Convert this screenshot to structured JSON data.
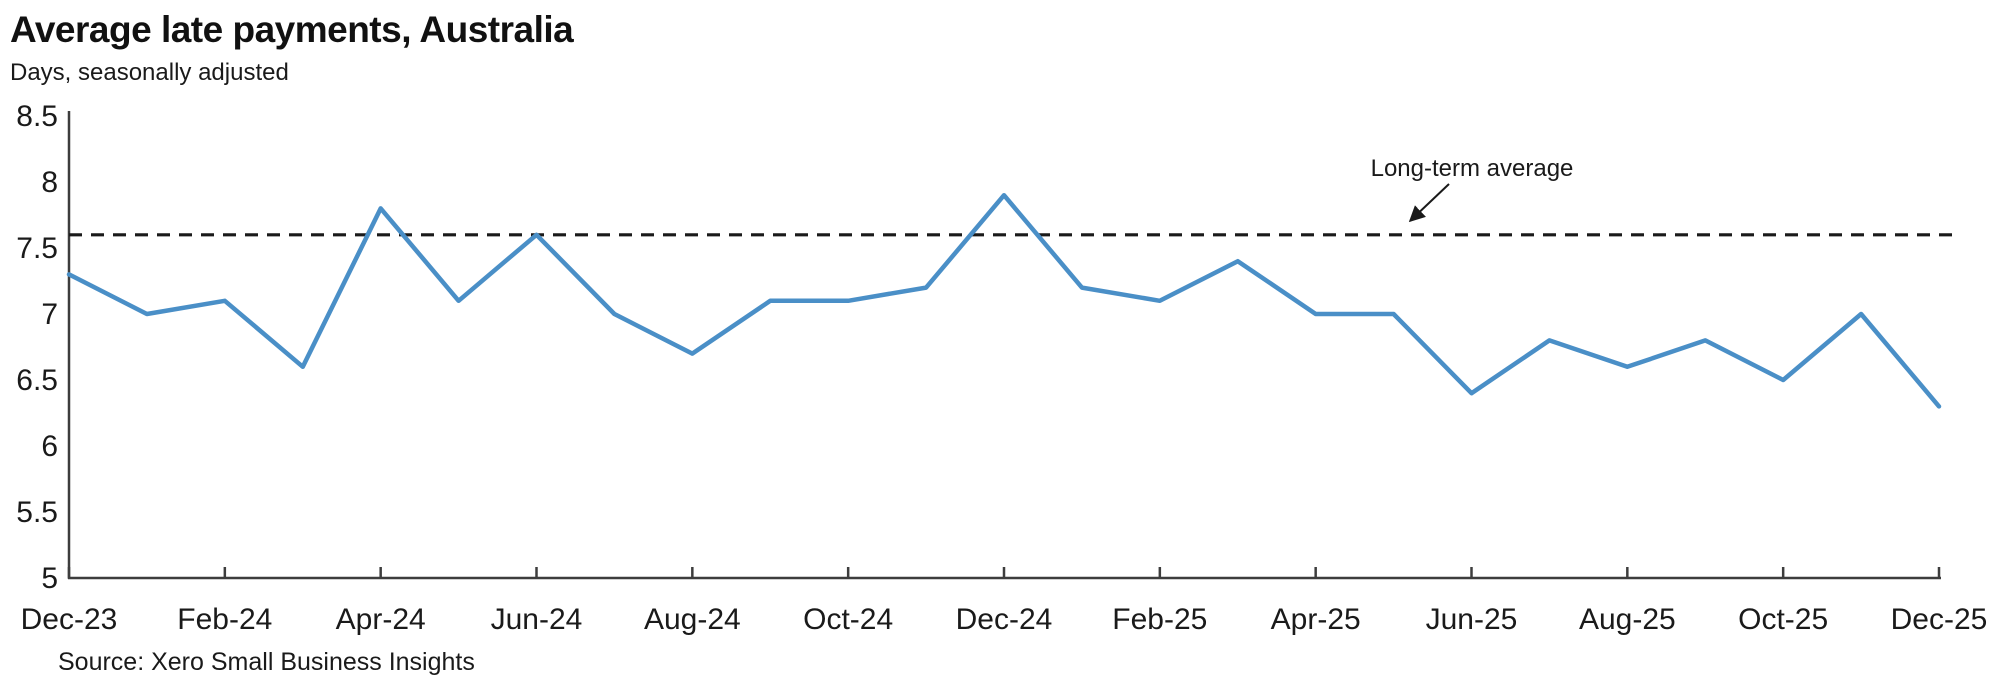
{
  "page": {
    "title": "Average late payments, Australia",
    "subtitle": "Days, seasonally adjusted",
    "source": "Source: Xero Small Business Insights"
  },
  "colors": {
    "line": "#4a8fc7",
    "axis": "#3d3d3d",
    "tick": "#3d3d3d",
    "text": "#1a1a1a",
    "reference_line": "#1a1a1a",
    "background": "#ffffff"
  },
  "chart_data": {
    "type": "line",
    "title": "Average late payments, Australia",
    "subtitle": "Days, seasonally adjusted",
    "x": [
      "Dec-23",
      "Jan-24",
      "Feb-24",
      "Mar-24",
      "Apr-24",
      "May-24",
      "Jun-24",
      "Jul-24",
      "Aug-24",
      "Sep-24",
      "Oct-24",
      "Nov-24",
      "Dec-24",
      "Jan-25",
      "Feb-25",
      "Mar-25",
      "Apr-25",
      "May-25",
      "Jun-25",
      "Jul-25",
      "Aug-25",
      "Sep-25",
      "Oct-25",
      "Nov-25",
      "Dec-25"
    ],
    "values": [
      7.3,
      7.0,
      7.1,
      6.6,
      7.8,
      7.1,
      7.6,
      7.0,
      6.7,
      7.1,
      7.1,
      7.2,
      7.9,
      7.2,
      7.1,
      7.4,
      7.0,
      7.0,
      6.4,
      6.8,
      6.6,
      6.8,
      6.5,
      7.0,
      6.3
    ],
    "x_tick_labels": [
      "Dec-23",
      "Feb-24",
      "Apr-24",
      "Jun-24",
      "Aug-24",
      "Oct-24",
      "Dec-24",
      "Feb-25",
      "Apr-25",
      "Jun-25",
      "Aug-25",
      "Oct-25",
      "Dec-25"
    ],
    "x_tick_every_n_points": 2,
    "y_ticks": [
      5,
      5.5,
      6,
      6.5,
      7,
      7.5,
      8,
      8.5
    ],
    "ylim": [
      5,
      8.5
    ],
    "ylabel": "Days, seasonally adjusted",
    "xlabel": "",
    "grid": false,
    "legend_position": "none",
    "reference_line": {
      "label": "Long-term average",
      "value": 7.6,
      "style": "dashed"
    },
    "source": "Source: Xero Small Business Insights"
  }
}
